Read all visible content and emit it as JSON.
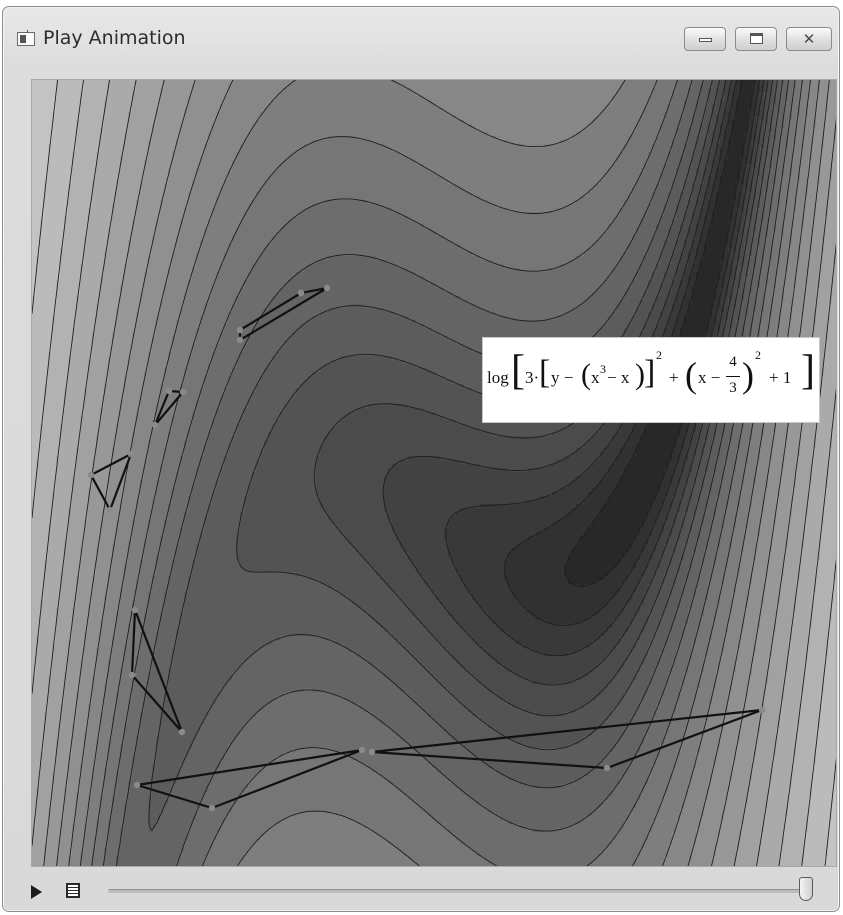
{
  "window": {
    "title": "Play Animation",
    "close_glyph": "✕"
  },
  "formula": {
    "log": "log",
    "three": "3·",
    "y_part": "y −",
    "x_cubed_x": "x",
    "exp3": "3",
    "minus_x": " − x",
    "sq1": "2",
    "plus1": "+",
    "x_minus": "x −",
    "num": "4",
    "den": "3",
    "sq2": "2",
    "plus_one": "+ 1"
  },
  "icons": [
    "app-icon",
    "minimize-icon",
    "maximize-icon",
    "close-icon",
    "play-icon",
    "document-icon"
  ],
  "animation": {
    "progress": 1.0
  },
  "colors": {
    "titlebar": "#dcdcdc",
    "contour_dark": "#2a2a2a",
    "contour_light": "#e8e8e8"
  }
}
